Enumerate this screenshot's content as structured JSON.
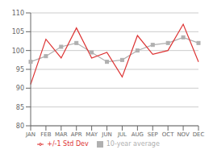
{
  "chart_data": {
    "type": "line",
    "categories": [
      "JAN",
      "FEB",
      "MAR",
      "APR",
      "MAY",
      "JUN",
      "JUL",
      "AUG",
      "SEP",
      "OCT",
      "NOV",
      "DEC"
    ],
    "series": [
      {
        "name": "10-year average",
        "color": "#b0b0b0",
        "marker": "square",
        "values": [
          97.0,
          98.5,
          101.0,
          102.0,
          99.5,
          97.0,
          97.5,
          100.0,
          101.5,
          102.0,
          103.5,
          102.0
        ]
      },
      {
        "name": "+/-1 Std Dev",
        "color": "#dd3333",
        "marker": "none",
        "values": [
          91.0,
          103.0,
          98.0,
          106.0,
          98.0,
          99.5,
          93.0,
          104.0,
          99.0,
          100.0,
          107.0,
          97.0
        ]
      }
    ],
    "ylim": [
      80,
      110
    ],
    "yticks": [
      80,
      85,
      90,
      95,
      100,
      105,
      110
    ],
    "grid": true,
    "legend": "bottom"
  }
}
